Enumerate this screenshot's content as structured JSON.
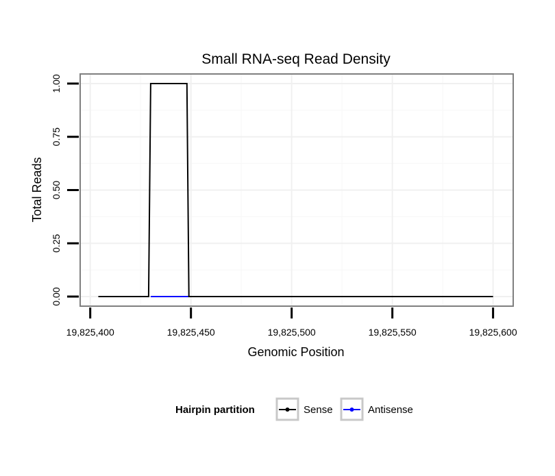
{
  "chart_data": {
    "type": "line",
    "title": "Small RNA-seq Read Density",
    "xlabel": "Genomic Position",
    "ylabel": "Total Reads",
    "xlim": [
      19825395,
      19825610
    ],
    "ylim": [
      -0.045,
      1.045
    ],
    "grid": true,
    "x_ticks": [
      19825400,
      19825450,
      19825500,
      19825550,
      19825600
    ],
    "x_tick_labels": [
      "19,825,400",
      "19,825,450",
      "19,825,500",
      "19,825,550",
      "19,825,600"
    ],
    "y_ticks": [
      0,
      0.25,
      0.5,
      0.75,
      1.0
    ],
    "y_tick_labels": [
      "0.00",
      "0.25",
      "0.50",
      "0.75",
      "1.00"
    ],
    "series": [
      {
        "name": "Antisense",
        "color": "#0000ff",
        "x": [
          19825430,
          19825449
        ],
        "y": [
          0,
          0
        ]
      },
      {
        "name": "Sense",
        "color": "#000000",
        "x": [
          19825404,
          19825429,
          19825430,
          19825448,
          19825449,
          19825600
        ],
        "y": [
          0,
          0,
          1,
          1,
          0,
          0
        ]
      }
    ],
    "legend": {
      "title": "Hairpin partition",
      "position": "bottom",
      "entries": [
        {
          "label": "Sense",
          "color": "#000000"
        },
        {
          "label": "Antisense",
          "color": "#0000ff"
        }
      ]
    }
  }
}
